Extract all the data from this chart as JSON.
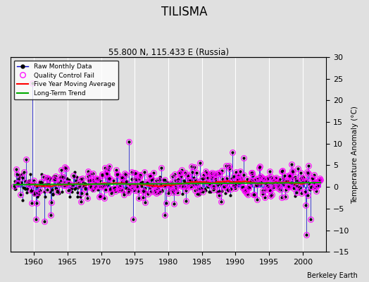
{
  "title": "TILISMA",
  "subtitle": "55.800 N, 115.433 E (Russia)",
  "credit": "Berkeley Earth",
  "ylabel_right": "Temperature Anomaly (°C)",
  "xlim": [
    1956.5,
    2003.5
  ],
  "ylim": [
    -15,
    30
  ],
  "yticks_right": [
    -15,
    -10,
    -5,
    0,
    5,
    10,
    15,
    20,
    25,
    30
  ],
  "xticks": [
    1960,
    1965,
    1970,
    1975,
    1980,
    1985,
    1990,
    1995,
    2000
  ],
  "bg_color": "#e0e0e0",
  "grid_color": "white",
  "line_color": "#0000cc",
  "dot_color": "black",
  "qc_color": "magenta",
  "moving_avg_color": "red",
  "trend_color": "#00aa00",
  "seed": 12345,
  "figsize": [
    5.24,
    4.0
  ],
  "dpi": 100
}
